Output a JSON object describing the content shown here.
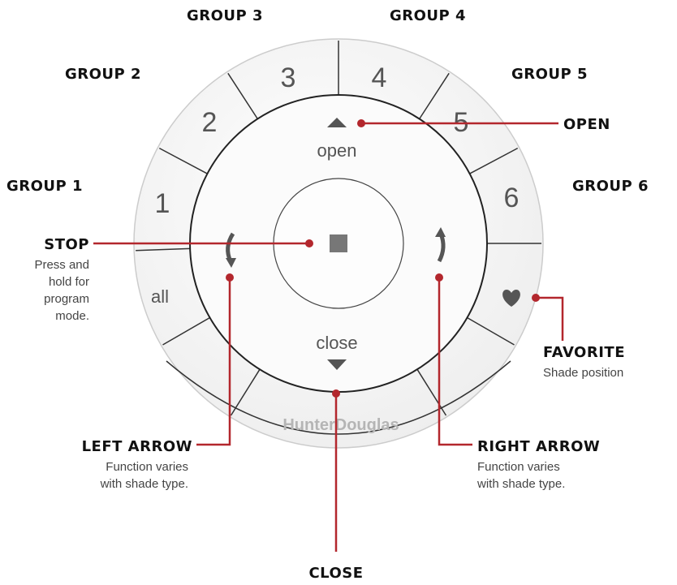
{
  "groups": [
    "GROUP 1",
    "GROUP 2",
    "GROUP 3",
    "GROUP 4",
    "GROUP 5",
    "GROUP 6"
  ],
  "callouts": {
    "open": {
      "title": "OPEN"
    },
    "stop": {
      "title": "STOP",
      "description": [
        "Press and",
        "hold for",
        "program",
        "mode."
      ]
    },
    "favorite": {
      "title": "FAVORITE",
      "description": [
        "Shade position"
      ]
    },
    "left_arrow": {
      "title": "LEFT ARROW",
      "description": [
        "Function varies",
        "with shade type."
      ]
    },
    "right_arrow": {
      "title": "RIGHT ARROW",
      "description": [
        "Function varies",
        "with shade type."
      ]
    },
    "close": {
      "title": "CLOSE"
    }
  },
  "remote": {
    "buttons": [
      "1",
      "2",
      "3",
      "4",
      "5",
      "6",
      "all"
    ],
    "open": "open",
    "close": "close",
    "brand": "HunterDouglas"
  }
}
